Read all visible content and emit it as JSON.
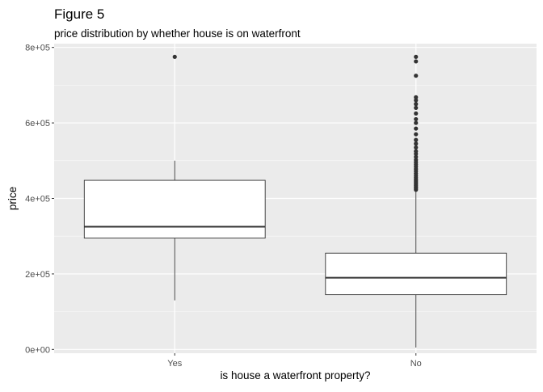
{
  "chart_data": {
    "type": "boxplot",
    "title": "Figure 5",
    "subtitle": "price distribution by whether house is on waterfront",
    "xlabel": "is house a waterfront property?",
    "ylabel": "price",
    "categories": [
      "Yes",
      "No"
    ],
    "ylim": [
      -10000,
      810000
    ],
    "yticks": [
      0,
      200000,
      400000,
      600000,
      800000
    ],
    "ytick_labels": [
      "0e+00",
      "2e+05",
      "4e+05",
      "6e+05",
      "8e+05"
    ],
    "grid": true,
    "boxes": [
      {
        "category": "Yes",
        "whisker_low": 130000,
        "q1": 295000,
        "median": 325000,
        "q3": 448000,
        "whisker_high": 500000,
        "outliers": [
          775000
        ]
      },
      {
        "category": "No",
        "whisker_low": 5000,
        "q1": 145000,
        "median": 190000,
        "q3": 255000,
        "whisker_high": 420000,
        "outliers": [
          423000,
          427000,
          430000,
          434000,
          438000,
          442000,
          446000,
          450000,
          455000,
          460000,
          466000,
          472000,
          478000,
          484000,
          490000,
          496000,
          502000,
          510000,
          518000,
          525000,
          535000,
          545000,
          555000,
          570000,
          585000,
          600000,
          610000,
          625000,
          640000,
          650000,
          660000,
          668000,
          725000,
          763000,
          775000
        ]
      }
    ],
    "colors": {
      "panel": "#ebebeb",
      "grid_major": "#ffffff",
      "box_fill": "#ffffff",
      "box_line": "#333333",
      "outlier": "#333333",
      "tick_text": "#4d4d4d",
      "text": "#000000"
    }
  }
}
